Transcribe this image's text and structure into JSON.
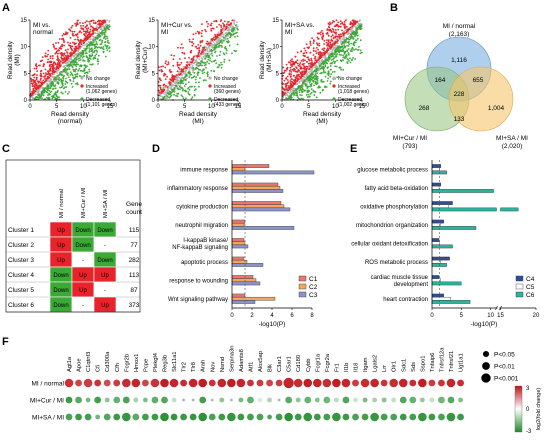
{
  "panel_labels": [
    "A",
    "B",
    "C",
    "D",
    "E",
    "F"
  ],
  "colors": {
    "increased": "#e8242a",
    "decreased": "#3aa935",
    "no_change": "#b3b3b3",
    "venn_normal": "#6fa8dc",
    "venn_cur": "#93c47d",
    "venn_sa": "#f6c66b",
    "up": "#e8242a",
    "down": "#3aa935",
    "c1": "#e8786f",
    "c2": "#f4a55f",
    "c3": "#8c93c8",
    "c4": "#2e4f93",
    "c5": "#ffffff",
    "c6": "#2bb39b"
  },
  "panel_a": {
    "plots": [
      {
        "title_lines": [
          "MI vs.",
          "normal"
        ],
        "xlabel": "Read density",
        "xlabel2": "(normal)",
        "ylabel": "Read density",
        "ylabel2": "(MI)",
        "legend": {
          "no_change": "No change",
          "increased": "Increased",
          "increased_count": "(1,062 genes)",
          "decreased": "Decreased",
          "decreased_count": "(1,101 genes)"
        },
        "ticks": [
          "0",
          "5",
          "10",
          "15"
        ]
      },
      {
        "title_lines": [
          "MI+Cur vs.",
          "MI"
        ],
        "xlabel": "Read density",
        "xlabel2": "(MI)",
        "ylabel": "Read density",
        "ylabel2": "(MI+Cur)",
        "legend": {
          "no_change": "No change",
          "increased": "Increased",
          "increased_count": "(360 genes)",
          "decreased": "Decreased",
          "decreased_count": "(433 genes)"
        },
        "ticks": [
          "0",
          "5",
          "10",
          "15"
        ]
      },
      {
        "title_lines": [
          "MI+SA vs.",
          "MI"
        ],
        "xlabel": "Read density",
        "xlabel2": "(MI)",
        "ylabel": "Read density",
        "ylabel2": "(MI+SA)",
        "legend": {
          "no_change": "No change",
          "increased": "Increased",
          "increased_count": "(1,018 genes)",
          "decreased": "Decreased",
          "decreased_count": "(1,002 genes)"
        },
        "ticks": [
          "0",
          "5",
          "10",
          "15"
        ]
      }
    ]
  },
  "panel_b": {
    "set_normal": "MI / normal",
    "set_normal_count": "(2,163)",
    "set_cur": "MI+Cur / MI",
    "set_cur_count": "(793)",
    "set_sa": "MI+SA / MI",
    "set_sa_count": "(2,020)",
    "regions": {
      "normal_only": "1,116",
      "cur_only": "268",
      "sa_only": "1,004",
      "normal_cur": "164",
      "normal_sa": "655",
      "cur_sa": "133",
      "all": "228"
    }
  },
  "panel_c": {
    "col_headers": [
      "MI / normal",
      "MI+Cur / MI",
      "MI+SA / MI"
    ],
    "count_header_1": "Gene",
    "count_header_2": "count",
    "rows": [
      {
        "name": "Cluster 1",
        "cells": [
          "Up",
          "Down",
          "Down"
        ],
        "count": "115"
      },
      {
        "name": "Cluster 2",
        "cells": [
          "Up",
          "Down",
          "-"
        ],
        "count": "77"
      },
      {
        "name": "Cluster 3",
        "cells": [
          "Up",
          "-",
          "Down"
        ],
        "count": "282"
      },
      {
        "name": "Cluster 4",
        "cells": [
          "Down",
          "Up",
          "Up"
        ],
        "count": "113"
      },
      {
        "name": "Cluster 5",
        "cells": [
          "Down",
          "Up",
          "-"
        ],
        "count": "87"
      },
      {
        "name": "Cluster 6",
        "cells": [
          "Down",
          "-",
          "Up"
        ],
        "count": "373"
      }
    ]
  },
  "chart_data": [
    {
      "type": "bar",
      "panel": "D",
      "orientation": "horizontal",
      "categories": [
        "immune response",
        "inflammatory response",
        "cytokine production",
        "neutrophil migration",
        "I-kappaB kinase/\nNF-kappaB signaling",
        "apoptotic process",
        "response to wounding",
        "Wnt signaling pathway"
      ],
      "series": [
        {
          "name": "C1",
          "values": [
            3.7,
            4.6,
            4.9,
            1.3,
            1.2,
            1.2,
            2.1,
            1.3
          ]
        },
        {
          "name": "C2",
          "values": [
            1.3,
            4.8,
            5.2,
            1.2,
            1.3,
            1.5,
            2.4,
            4.3
          ]
        },
        {
          "name": "C3",
          "values": [
            8.2,
            5.1,
            5.8,
            6.2,
            1.6,
            3.1,
            2.8,
            2.3
          ]
        }
      ],
      "xlabel": "-log10(P)",
      "xlim": [
        0,
        8
      ],
      "xticks": [
        0,
        2,
        4,
        6,
        8
      ],
      "threshold": 1.3,
      "legend": "bottom-right"
    },
    {
      "type": "bar",
      "panel": "E",
      "orientation": "horizontal",
      "axis_break": [
        11,
        15
      ],
      "categories": [
        "glucose metabolic process",
        "fatty acid beta-oxidation",
        "oxidative phosphorylation",
        "mitochondrion organization",
        "cellular oxidant detoxification",
        "ROS metabolic process",
        "cardiac muscle tissue\ndevelopment",
        "heart contraction"
      ],
      "series": [
        {
          "name": "C4",
          "values": [
            1.5,
            1.5,
            3.5,
            2.0,
            1.2,
            3.0,
            1.2,
            2.0
          ]
        },
        {
          "name": "C5",
          "values": [
            1.3,
            1.2,
            2.8,
            1.5,
            1.3,
            1.4,
            1.5,
            3.2
          ]
        },
        {
          "name": "C6",
          "values": [
            2.5,
            10.5,
            17.5,
            7.5,
            3.5,
            2.5,
            5.0,
            6.5
          ]
        }
      ],
      "xlabel": "-log10(P)",
      "xticks": [
        0,
        5,
        10,
        15,
        20
      ],
      "threshold": 1.3,
      "legend": "bottom-right"
    },
    {
      "type": "heatmap",
      "panel": "F",
      "genes": [
        "Agt1a",
        "Apoe",
        "C1qtnf3",
        "Cfi",
        "Cd300a",
        "Cfh",
        "Fcgr2b",
        "Hmox1",
        "Pcpe",
        "Plekgl4",
        "Reg3b",
        "Slc11a1",
        "Tlr2",
        "Tlr8",
        "Arah",
        "Nov",
        "Nsmd",
        "Serpina3n",
        "Adamts8",
        "Atf1",
        "Alox5ap",
        "Blk",
        "C3ar1",
        "C5ar1",
        "Cd180",
        "Cybb",
        "Fcgr1a",
        "Fcgr2a",
        "Fr1",
        "Il1b",
        "Il18",
        "Itgam",
        "Lgals2",
        "Lrr",
        "Olr1",
        "Sdc1",
        "Sds",
        "Sspo1",
        "Tnfaip6",
        "Tnfrsf12a",
        "Tnfrsf21",
        "Ugt1a1"
      ],
      "rows": [
        "MI / normal",
        "MI+Cur / MI",
        "MI+SA / MI"
      ],
      "log2_fold_change": [
        [
          2.6,
          2.4,
          2.5,
          2.6,
          2.3,
          2.5,
          2.7,
          2.8,
          2.4,
          2.6,
          2.9,
          2.8,
          2.7,
          2.8,
          2.9,
          2.6,
          2.8,
          2.9,
          2.8,
          2.6,
          2.5,
          2.4,
          2.5,
          2.8,
          2.7,
          2.9,
          2.8,
          2.7,
          2.9,
          2.8,
          2.5,
          2.7,
          2.8,
          2.6,
          2.7,
          2.8,
          2.7,
          2.9,
          2.5,
          2.6,
          2.8,
          2.7
        ],
        [
          -2.6,
          -2.2,
          -1.8,
          -2.5,
          -1.5,
          -2.0,
          -2.4,
          -1.2,
          -1.7,
          -2.1,
          -2.3,
          -0.8,
          0.0,
          0.0,
          -2.5,
          0.0,
          -1.5,
          0.0,
          -1.8,
          -2.1,
          -0.5,
          -1.1,
          0.0,
          -2.2,
          -1.5,
          -2.0,
          -1.6,
          -1.9,
          -0.9,
          -2.3,
          -0.7,
          -1.8,
          -1.2,
          -1.6,
          -0.8,
          -2.3,
          -2.0,
          -1.4,
          -0.8,
          -1.9,
          -2.2,
          -1.7
        ],
        [
          -2.4,
          -2.6,
          -2.5,
          -1.9,
          -2.3,
          -2.6,
          -2.7,
          -2.2,
          -2.5,
          -2.6,
          -2.8,
          -2.7,
          -2.6,
          -2.7,
          -2.8,
          -2.4,
          -2.6,
          -2.7,
          -2.6,
          -2.5,
          -2.4,
          -2.3,
          -2.5,
          -2.8,
          -2.6,
          -2.7,
          -2.6,
          -2.5,
          -2.7,
          -2.6,
          -2.4,
          -2.5,
          -2.7,
          -2.5,
          -2.4,
          -2.6,
          -2.5,
          -2.7,
          -2.6,
          -2.4,
          -2.7,
          -2.6
        ]
      ],
      "significance": [
        [
          3,
          2,
          3,
          2,
          2,
          2,
          3,
          3,
          2,
          3,
          3,
          3,
          2,
          3,
          3,
          2,
          3,
          3,
          3,
          2,
          2,
          2,
          2,
          4,
          3,
          3,
          3,
          3,
          3,
          3,
          2,
          3,
          3,
          2,
          3,
          3,
          2,
          3,
          2,
          2,
          3,
          2
        ],
        [
          2,
          2,
          1,
          2,
          1,
          2,
          2,
          1,
          1,
          2,
          2,
          1,
          0,
          0,
          2,
          0,
          1,
          0,
          1,
          2,
          1,
          1,
          0,
          2,
          1,
          2,
          1,
          2,
          1,
          2,
          1,
          1,
          1,
          1,
          1,
          2,
          2,
          1,
          1,
          2,
          2,
          1
        ],
        [
          2,
          2,
          2,
          1,
          2,
          2,
          3,
          2,
          2,
          2,
          3,
          2,
          2,
          2,
          3,
          2,
          2,
          3,
          2,
          2,
          2,
          1,
          2,
          3,
          2,
          3,
          2,
          2,
          3,
          2,
          2,
          2,
          3,
          2,
          2,
          2,
          2,
          3,
          2,
          2,
          3,
          2
        ]
      ],
      "size_legend": [
        "P<0.05",
        "P<0.01",
        "P<0.001"
      ],
      "color_scale": {
        "min": "-3",
        "mid": "0",
        "max": "3",
        "label": "log2(fold change)"
      }
    }
  ]
}
